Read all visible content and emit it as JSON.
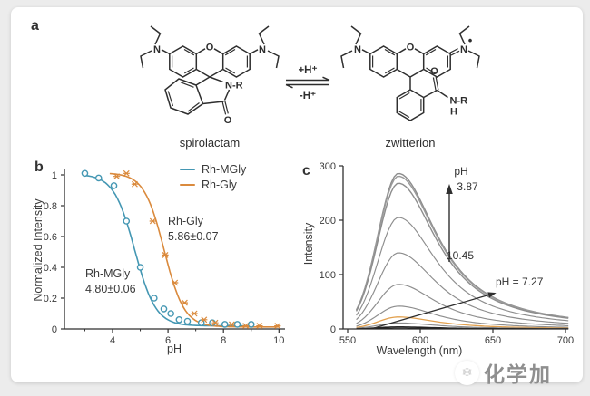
{
  "figure": {
    "background_color": "#ececec",
    "card_color": "#ffffff",
    "panel_labels": {
      "a": "a",
      "b": "b",
      "c": "c"
    },
    "panel_a": {
      "caption_left": "spirolactam",
      "caption_right": "zwitterion",
      "equilibrium": {
        "forward_label": "+H⁺",
        "reverse_label": "-H⁺"
      },
      "spirolactam_atoms": {
        "oxygen_bridge": "O",
        "nitrogen_left": "N",
        "nitrogen_right": "N",
        "amide": "N-R",
        "carbonyl_oxygen": "O"
      },
      "zwitterion_atoms": {
        "oxygen_bridge": "O",
        "nitrogen_left": "N",
        "nitrogen_right": "N",
        "charge_dot": "•",
        "carbonyl_oxygen": "O",
        "amide": "N-R",
        "amide_h": "H"
      }
    },
    "watermark": {
      "logo": "snowflake-logo",
      "logo_glyph": "❄",
      "text": "化学加"
    }
  },
  "chart_data": [
    {
      "panel": "b",
      "type": "scatter",
      "xlabel": "pH",
      "ylabel": "Normalized Intensity",
      "xlim": [
        2.7,
        10.2
      ],
      "ylim": [
        0,
        1.05
      ],
      "xticks": [
        4,
        6,
        8,
        10
      ],
      "yticks": [
        0,
        0.2,
        0.4,
        0.6,
        0.8,
        1
      ],
      "legend_position": "top-right",
      "series": [
        {
          "name": "Rh-MGly",
          "color": "#4497b3",
          "marker": "open-circle",
          "pka": 4.8,
          "pka_label": "4.80±0.06",
          "points": [
            [
              3.0,
              1.01
            ],
            [
              3.5,
              0.98
            ],
            [
              4.05,
              0.93
            ],
            [
              4.5,
              0.7
            ],
            [
              5.0,
              0.4
            ],
            [
              5.5,
              0.2
            ],
            [
              5.85,
              0.13
            ],
            [
              6.1,
              0.1
            ],
            [
              6.4,
              0.06
            ],
            [
              6.7,
              0.05
            ],
            [
              7.2,
              0.04
            ],
            [
              7.6,
              0.04
            ],
            [
              8.05,
              0.03
            ],
            [
              8.5,
              0.03
            ],
            [
              9.0,
              0.03
            ]
          ]
        },
        {
          "name": "Rh-Gly",
          "color": "#da8a3d",
          "marker": "x-star",
          "pka": 5.86,
          "pka_label": "5.86±0.07",
          "points": [
            [
              4.15,
              0.99
            ],
            [
              4.5,
              1.01
            ],
            [
              4.8,
              0.94
            ],
            [
              5.45,
              0.7
            ],
            [
              5.9,
              0.48
            ],
            [
              6.25,
              0.3
            ],
            [
              6.6,
              0.17
            ],
            [
              6.95,
              0.1
            ],
            [
              7.3,
              0.06
            ],
            [
              7.7,
              0.04
            ],
            [
              8.3,
              0.03
            ],
            [
              8.8,
              0.02
            ],
            [
              9.3,
              0.02
            ],
            [
              9.95,
              0.02
            ]
          ]
        }
      ],
      "annotations": [
        {
          "line1": "Rh-Gly",
          "line2": "5.86±0.07"
        },
        {
          "line1": "Rh-MGly",
          "line2": "4.80±0.06"
        }
      ]
    },
    {
      "panel": "c",
      "type": "line",
      "xlabel": "Wavelength (nm)",
      "ylabel": "Intensity",
      "xlim": [
        543,
        706
      ],
      "ylim": [
        0,
        300
      ],
      "xticks": [
        550,
        600,
        650,
        700
      ],
      "yticks": [
        0,
        100,
        200,
        300
      ],
      "peak_nm": 585,
      "curves": [
        {
          "peak": 286,
          "color": "#8d8d8d"
        },
        {
          "peak": 281,
          "color": "#9a9a9a"
        },
        {
          "peak": 268,
          "color": "#8d8d8d"
        },
        {
          "peak": 205,
          "color": "#8d8d8d"
        },
        {
          "peak": 140,
          "color": "#8d8d8d"
        },
        {
          "peak": 82,
          "color": "#8d8d8d"
        },
        {
          "peak": 42,
          "color": "#8d8d8d"
        },
        {
          "peak": 22,
          "color": "#e2a04d",
          "highlight": true
        },
        {
          "peak": 11,
          "color": "#8d8d8d"
        },
        {
          "peak": 4,
          "color": "#2b2b2b"
        },
        {
          "peak": 2,
          "color": "#1a1a1a"
        }
      ],
      "arrow_labels": {
        "ph_title": "pH",
        "ph_top": "3.87",
        "ph_bottom": "10.45",
        "ph_highlight": "pH = 7.27"
      }
    }
  ]
}
